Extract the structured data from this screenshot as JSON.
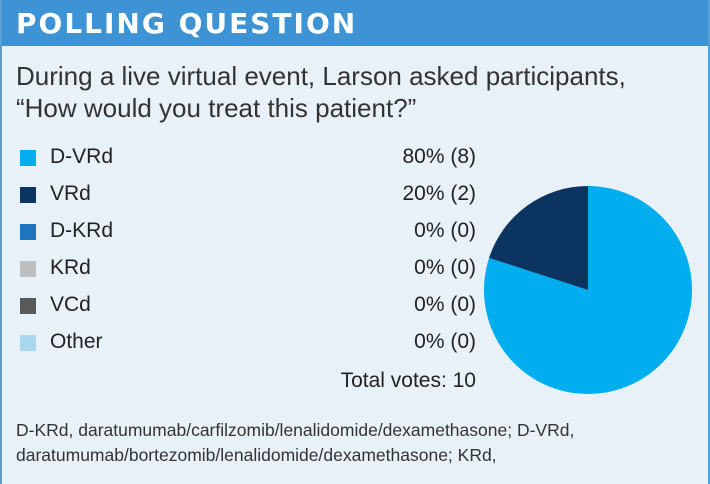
{
  "header": {
    "title": "POLLING QUESTION"
  },
  "question": {
    "line1": "During a live virtual event, Larson asked participants,",
    "line2": "“How would you treat this patient?”"
  },
  "chart_data": {
    "type": "pie",
    "categories": [
      "D-VRd",
      "VRd",
      "D-KRd",
      "KRd",
      "VCd",
      "Other"
    ],
    "values": [
      80,
      20,
      0,
      0,
      0,
      0
    ],
    "counts": [
      8,
      2,
      0,
      0,
      0,
      0
    ],
    "value_labels": [
      "80% (8)",
      "20% (2)",
      "0% (0)",
      "0% (0)",
      "0% (0)",
      "0% (0)"
    ],
    "colors": [
      "#00aeef",
      "#0c3461",
      "#1f75bd",
      "#bcbec0",
      "#58595b",
      "#a9d9ef"
    ],
    "total_label": "Total votes: 10",
    "legend_position": "left"
  },
  "footnote": {
    "line1": "D-KRd, daratumumab/carfilzomib/lenalidomide/dexamethasone; D-VRd,",
    "line2": "daratumumab/bortezomib/lenalidomide/dexamethasone; KRd,"
  }
}
